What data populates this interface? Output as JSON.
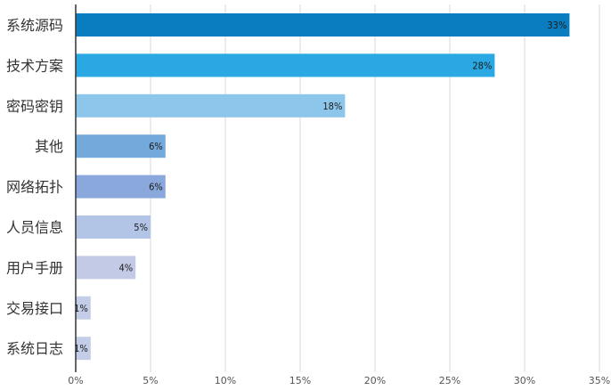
{
  "chart_data": {
    "type": "bar",
    "orientation": "horizontal",
    "categories": [
      "系统源码",
      "技术方案",
      "密码密钥",
      "其他",
      "网络拓扑",
      "人员信息",
      "用户手册",
      "交易接口",
      "系统日志"
    ],
    "values": [
      33,
      28,
      18,
      6,
      6,
      5,
      4,
      1,
      1
    ],
    "value_labels": [
      "33%",
      "28%",
      "18%",
      "6%",
      "6%",
      "5%",
      "4%",
      "1%",
      "1%"
    ],
    "bar_colors": [
      "#0a7dc0",
      "#29a8e3",
      "#8dc6eb",
      "#74a9dc",
      "#8aa8dc",
      "#b3c5e7",
      "#c2cae5",
      "#c3cde8",
      "#c3cde8"
    ],
    "xlim": [
      0,
      35
    ],
    "xticks": [
      0,
      5,
      10,
      15,
      20,
      25,
      30,
      35
    ],
    "xtick_labels": [
      "0%",
      "5%",
      "10%",
      "15%",
      "20%",
      "25%",
      "30%",
      "35%"
    ],
    "grid": true,
    "legend": "none"
  }
}
